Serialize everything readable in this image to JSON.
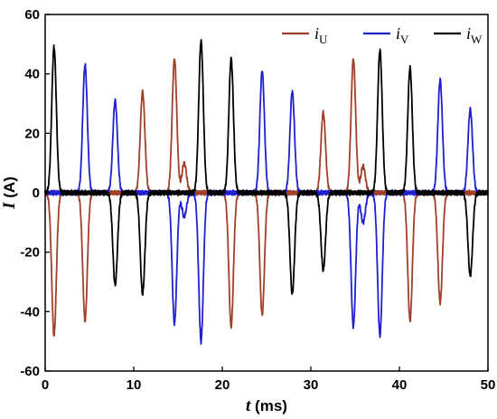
{
  "chart_data": {
    "type": "line",
    "xlabel": {
      "symbol": "t",
      "unit": " (ms)"
    },
    "ylabel": {
      "symbol": "I",
      "unit": " (A)"
    },
    "xlim": [
      0,
      50
    ],
    "ylim": [
      -60,
      60
    ],
    "xticks": [
      0,
      10,
      20,
      30,
      40,
      50
    ],
    "yticks": [
      -60,
      -40,
      -20,
      0,
      20,
      40,
      60
    ],
    "grid": false,
    "legend_position": "top-right",
    "series": [
      {
        "name": "iU",
        "name_main": "i",
        "name_sub": "U",
        "color": "#a0402a",
        "pulses": [
          [
            1.0,
            -48
          ],
          [
            4.5,
            -43
          ],
          [
            11.0,
            34
          ],
          [
            14.6,
            45
          ],
          [
            15.7,
            10
          ],
          [
            21.0,
            -45
          ],
          [
            24.5,
            -41
          ],
          [
            31.4,
            27
          ],
          [
            34.8,
            45
          ],
          [
            35.9,
            9
          ],
          [
            41.2,
            -43
          ],
          [
            44.6,
            -37
          ]
        ]
      },
      {
        "name": "iV",
        "name_main": "i",
        "name_sub": "V",
        "color": "#2020d0",
        "pulses": [
          [
            4.5,
            43
          ],
          [
            7.9,
            31
          ],
          [
            14.6,
            -44
          ],
          [
            15.7,
            -8
          ],
          [
            17.6,
            -50
          ],
          [
            24.5,
            41
          ],
          [
            27.9,
            34
          ],
          [
            34.8,
            -45
          ],
          [
            35.9,
            -10
          ],
          [
            37.8,
            -48
          ],
          [
            44.6,
            38
          ],
          [
            48.0,
            28
          ]
        ]
      },
      {
        "name": "iW",
        "name_main": "i",
        "name_sub": "W",
        "color": "#000000",
        "pulses": [
          [
            1.0,
            49
          ],
          [
            7.9,
            -31
          ],
          [
            11.0,
            -34
          ],
          [
            17.6,
            51
          ],
          [
            21.0,
            45
          ],
          [
            27.9,
            -34
          ],
          [
            31.4,
            -26
          ],
          [
            37.8,
            48
          ],
          [
            41.2,
            42
          ],
          [
            48.0,
            -28
          ]
        ]
      }
    ]
  }
}
